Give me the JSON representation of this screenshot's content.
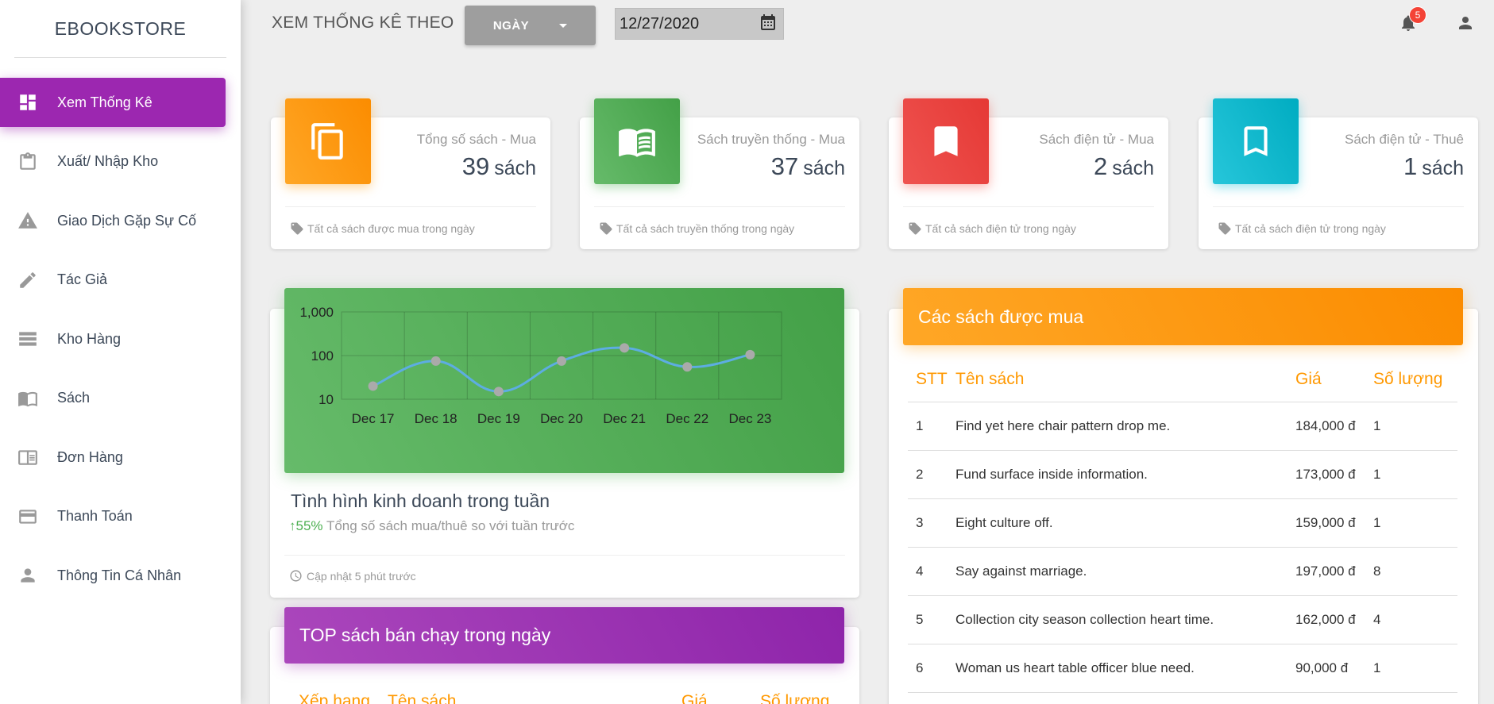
{
  "sidebar": {
    "logo": "EBOOKSTORE",
    "items": [
      {
        "label": "Xem Thống Kê",
        "icon": "dashboard-icon",
        "active": true
      },
      {
        "label": "Xuất/ Nhập Kho",
        "icon": "clipboard-icon"
      },
      {
        "label": "Giao Dịch Gặp Sự Cố",
        "icon": "warning-icon"
      },
      {
        "label": "Tác Giả",
        "icon": "pencil-icon"
      },
      {
        "label": "Kho Hàng",
        "icon": "list-icon"
      },
      {
        "label": "Sách",
        "icon": "book-icon"
      },
      {
        "label": "Đơn Hàng",
        "icon": "receipt-icon"
      },
      {
        "label": "Thanh Toán",
        "icon": "credit-card-icon"
      },
      {
        "label": "Thông Tin Cá Nhân",
        "icon": "person-icon"
      }
    ]
  },
  "topbar": {
    "label": "XEM THỐNG KÊ THEO",
    "period_select": "NGÀY",
    "date_value": "12/27/2020",
    "notification_count": "5"
  },
  "stats": [
    {
      "category": "Tổng số sách - Mua",
      "value": "39",
      "unit": "sách",
      "footer": "Tất cả sách được mua trong ngày",
      "color": "#fb8c00",
      "icon": "copy-icon"
    },
    {
      "category": "Sách truyền thống - Mua",
      "value": "37",
      "unit": "sách",
      "footer": "Tất cả sách truyền thống trong ngày",
      "color": "#43a047",
      "icon": "open-book-icon"
    },
    {
      "category": "Sách điện tử - Mua",
      "value": "2",
      "unit": "sách",
      "footer": "Tất cả sách điện tử trong ngày",
      "color": "#e53935",
      "icon": "bookmark-icon"
    },
    {
      "category": "Sách điện tử - Thuê",
      "value": "1",
      "unit": "sách",
      "footer": "Tất cả sách điện tử trong ngày",
      "color": "#00acc1",
      "icon": "bookmark-outline-icon"
    }
  ],
  "weekly": {
    "title": "Tình hình kinh doanh trong tuần",
    "change": "55%",
    "subtitle": "Tổng số sách mua/thuê so với tuần trước",
    "updated": "Cập nhật 5 phút trước"
  },
  "chart_data": {
    "type": "line",
    "x": [
      "Dec 17",
      "Dec 18",
      "Dec 19",
      "Dec 20",
      "Dec 21",
      "Dec 22",
      "Dec 23"
    ],
    "series": [
      {
        "values": [
          20,
          75,
          15,
          75,
          150,
          55,
          105
        ]
      }
    ],
    "y_ticks": [
      "1,000",
      "100",
      "10"
    ],
    "y_scale": "log",
    "ylim": [
      10,
      1000
    ],
    "grid": true,
    "line_color": "#5dade2",
    "point_color": "#aaaaaa"
  },
  "top_books": {
    "title": "TOP sách bán chạy trong ngày",
    "columns": [
      "Xếp hạng",
      "Tên sách",
      "Giá",
      "Số lượng"
    ]
  },
  "purchased": {
    "title": "Các sách được mua",
    "columns": [
      "STT",
      "Tên sách",
      "Giá",
      "Số lượng"
    ],
    "rows": [
      {
        "stt": "1",
        "name": "Find yet here chair pattern drop me.",
        "price": "184,000 đ",
        "qty": "1"
      },
      {
        "stt": "2",
        "name": "Fund surface inside information.",
        "price": "173,000 đ",
        "qty": "1"
      },
      {
        "stt": "3",
        "name": "Eight culture off.",
        "price": "159,000 đ",
        "qty": "1"
      },
      {
        "stt": "4",
        "name": "Say against marriage.",
        "price": "197,000 đ",
        "qty": "8"
      },
      {
        "stt": "5",
        "name": "Collection city season collection heart time.",
        "price": "162,000 đ",
        "qty": "4"
      },
      {
        "stt": "6",
        "name": "Woman us heart table officer blue need.",
        "price": "90,000 đ",
        "qty": "1"
      }
    ]
  }
}
